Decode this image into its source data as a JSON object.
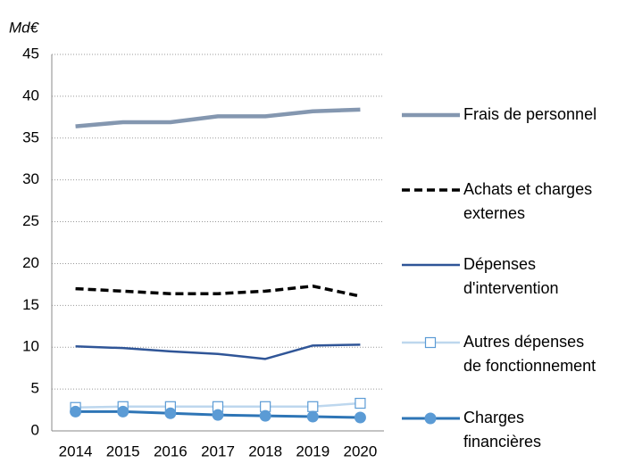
{
  "chart_data": {
    "type": "line",
    "y_label": "Md€",
    "categories": [
      "2014",
      "2015",
      "2016",
      "2017",
      "2018",
      "2019",
      "2020"
    ],
    "ylim": [
      0,
      45
    ],
    "yticks": [
      0,
      5,
      10,
      15,
      20,
      25,
      30,
      35,
      40,
      45
    ],
    "grid": true,
    "series": [
      {
        "name": "Frais de personnel",
        "color": "#8497b0",
        "values": [
          36.4,
          36.9,
          36.9,
          37.6,
          37.6,
          38.2,
          38.4
        ]
      },
      {
        "name": "Achats et charges\nexternes",
        "color": "#000000",
        "dashed": true,
        "values": [
          17.0,
          16.7,
          16.4,
          16.4,
          16.7,
          17.3,
          16.1
        ]
      },
      {
        "name": "Dépenses\nd'intervention",
        "color": "#2f5597",
        "values": [
          10.1,
          9.9,
          9.5,
          9.2,
          8.6,
          10.2,
          10.3
        ]
      },
      {
        "name": "Autres dépenses\nde fonctionnement",
        "color": "#bdd7ee",
        "marker": "square",
        "values": [
          2.8,
          2.9,
          2.9,
          2.9,
          2.9,
          2.9,
          3.3
        ]
      },
      {
        "name": "Charges\nfinancières",
        "color": "#2e75b6",
        "marker": "circle",
        "values": [
          2.3,
          2.3,
          2.1,
          1.9,
          1.8,
          1.7,
          1.6
        ]
      }
    ]
  }
}
